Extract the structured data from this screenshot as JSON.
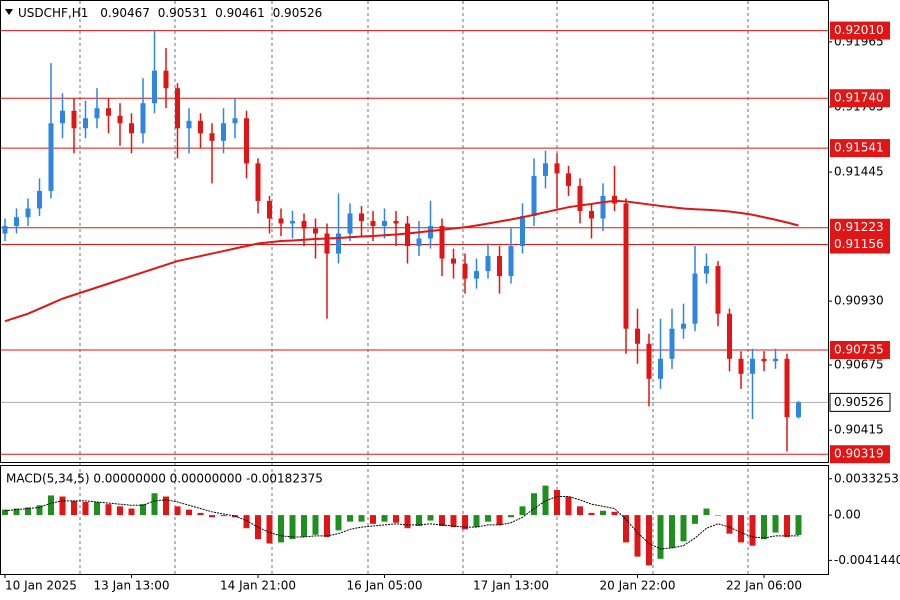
{
  "chart_data": {
    "type": "candlestick",
    "symbol": "USDCHF,H1",
    "bull_color": "#2f86e0",
    "bear_color": "#e01515",
    "ma_color": "#e01515",
    "level_color": "#e01515",
    "categories": [
      "10 Jan 2025",
      null,
      null,
      null,
      null,
      null,
      null,
      null,
      null,
      null,
      null,
      "13 Jan 13:00",
      null,
      null,
      null,
      null,
      null,
      null,
      null,
      null,
      null,
      null,
      "14 Jan 21:00",
      null,
      null,
      null,
      null,
      null,
      null,
      null,
      null,
      null,
      null,
      "16 Jan 05:00",
      null,
      null,
      null,
      null,
      null,
      null,
      null,
      null,
      null,
      null,
      "17 Jan 13:00",
      null,
      null,
      null,
      null,
      null,
      null,
      null,
      null,
      null,
      null,
      "20 Jan 22:00",
      null,
      null,
      null,
      null,
      null,
      null,
      null,
      null,
      null,
      null,
      "22 Jan 06:00",
      null,
      null,
      null
    ],
    "candles": [
      [
        0.912,
        0.9126,
        0.9117,
        0.9123
      ],
      [
        0.9123,
        0.913,
        0.912,
        0.91265
      ],
      [
        0.91265,
        0.9134,
        0.9123,
        0.913
      ],
      [
        0.913,
        0.9142,
        0.9127,
        0.9137
      ],
      [
        0.9137,
        0.9188,
        0.9134,
        0.9164
      ],
      [
        0.9164,
        0.9176,
        0.9158,
        0.9169
      ],
      [
        0.9169,
        0.9174,
        0.9152,
        0.9162
      ],
      [
        0.9162,
        0.9173,
        0.9158,
        0.9166
      ],
      [
        0.9166,
        0.9178,
        0.9162,
        0.917
      ],
      [
        0.917,
        0.9174,
        0.916,
        0.9167
      ],
      [
        0.9167,
        0.9172,
        0.9155,
        0.9164
      ],
      [
        0.9164,
        0.9168,
        0.9152,
        0.916
      ],
      [
        0.916,
        0.9182,
        0.9156,
        0.9172
      ],
      [
        0.9172,
        0.9201,
        0.9168,
        0.9185
      ],
      [
        0.9185,
        0.9194,
        0.917,
        0.9178
      ],
      [
        0.9178,
        0.918,
        0.915,
        0.9162
      ],
      [
        0.9162,
        0.917,
        0.9152,
        0.9165
      ],
      [
        0.9165,
        0.9168,
        0.9154,
        0.916
      ],
      [
        0.916,
        0.9164,
        0.914,
        0.9157
      ],
      [
        0.9157,
        0.917,
        0.9152,
        0.9164
      ],
      [
        0.9164,
        0.9174,
        0.9158,
        0.9166
      ],
      [
        0.9166,
        0.9169,
        0.9142,
        0.9148
      ],
      [
        0.9148,
        0.915,
        0.9128,
        0.9133
      ],
      [
        0.9133,
        0.9135,
        0.912,
        0.9126
      ],
      [
        0.9126,
        0.913,
        0.9119,
        0.9124
      ],
      [
        0.9124,
        0.9129,
        0.9118,
        0.9125
      ],
      [
        0.9125,
        0.9128,
        0.9115,
        0.9122
      ],
      [
        0.9122,
        0.9126,
        0.911,
        0.912
      ],
      [
        0.912,
        0.9124,
        0.9086,
        0.9112
      ],
      [
        0.9112,
        0.9136,
        0.9108,
        0.912
      ],
      [
        0.912,
        0.9132,
        0.9117,
        0.9128
      ],
      [
        0.9128,
        0.9131,
        0.9119,
        0.9125
      ],
      [
        0.9125,
        0.9129,
        0.9117,
        0.9123
      ],
      [
        0.9123,
        0.913,
        0.9118,
        0.9125
      ],
      [
        0.9125,
        0.9129,
        0.9115,
        0.9124
      ],
      [
        0.9124,
        0.9127,
        0.9108,
        0.9115
      ],
      [
        0.9115,
        0.9125,
        0.9111,
        0.9118
      ],
      [
        0.9118,
        0.9133,
        0.9114,
        0.9123
      ],
      [
        0.9123,
        0.9126,
        0.9103,
        0.911
      ],
      [
        0.911,
        0.9114,
        0.9102,
        0.9108
      ],
      [
        0.9108,
        0.9112,
        0.9096,
        0.9102
      ],
      [
        0.9102,
        0.911,
        0.9098,
        0.9105
      ],
      [
        0.9105,
        0.9116,
        0.9102,
        0.9111
      ],
      [
        0.9111,
        0.9115,
        0.9096,
        0.9103
      ],
      [
        0.9103,
        0.9122,
        0.91,
        0.9115
      ],
      [
        0.9115,
        0.9132,
        0.9112,
        0.9127
      ],
      [
        0.9127,
        0.915,
        0.9123,
        0.9143
      ],
      [
        0.9143,
        0.9153,
        0.9138,
        0.9148
      ],
      [
        0.9148,
        0.9152,
        0.913,
        0.9144
      ],
      [
        0.9144,
        0.9147,
        0.9135,
        0.9139
      ],
      [
        0.9139,
        0.9142,
        0.9124,
        0.9129
      ],
      [
        0.9129,
        0.9132,
        0.9118,
        0.9126
      ],
      [
        0.9126,
        0.914,
        0.9121,
        0.9135
      ],
      [
        0.9135,
        0.9147,
        0.9129,
        0.9132
      ],
      [
        0.9132,
        0.9134,
        0.9072,
        0.9082
      ],
      [
        0.9082,
        0.909,
        0.9068,
        0.9076
      ],
      [
        0.9076,
        0.908,
        0.9051,
        0.9062
      ],
      [
        0.9062,
        0.9086,
        0.9058,
        0.907
      ],
      [
        0.907,
        0.909,
        0.9066,
        0.9082
      ],
      [
        0.9082,
        0.9092,
        0.9078,
        0.9084
      ],
      [
        0.9084,
        0.9115,
        0.9081,
        0.9104
      ],
      [
        0.9104,
        0.9112,
        0.91,
        0.9107
      ],
      [
        0.9107,
        0.9109,
        0.9083,
        0.9088
      ],
      [
        0.9088,
        0.909,
        0.9065,
        0.907
      ],
      [
        0.907,
        0.9073,
        0.9058,
        0.9064
      ],
      [
        0.9064,
        0.9074,
        0.9046,
        0.907
      ],
      [
        0.907,
        0.9073,
        0.9065,
        0.9069
      ],
      [
        0.9069,
        0.9074,
        0.9066,
        0.907
      ],
      [
        0.907,
        0.9072,
        0.9033,
        0.90467
      ],
      [
        0.90467,
        0.90531,
        0.90461,
        0.90526
      ]
    ],
    "ma": [
      0.9085,
      0.90865,
      0.9088,
      0.909,
      0.9092,
      0.9094,
      0.90955,
      0.9097,
      0.90985,
      0.91,
      0.91015,
      0.9103,
      0.91045,
      0.9106,
      0.91075,
      0.9109,
      0.911,
      0.9111,
      0.9112,
      0.9113,
      0.9114,
      0.9115,
      0.9116,
      0.91165,
      0.9117,
      0.91172,
      0.91175,
      0.91178,
      0.9118,
      0.91182,
      0.91185,
      0.91188,
      0.9119,
      0.91193,
      0.91196,
      0.912,
      0.91205,
      0.9121,
      0.91215,
      0.9122,
      0.91225,
      0.91232,
      0.9124,
      0.91248,
      0.91256,
      0.91265,
      0.91275,
      0.91285,
      0.91295,
      0.91305,
      0.91312,
      0.91318,
      0.91325,
      0.9133,
      0.91328,
      0.91322,
      0.91316,
      0.9131,
      0.91305,
      0.913,
      0.91297,
      0.91295,
      0.91292,
      0.91288,
      0.91282,
      0.91275,
      0.91265,
      0.91255,
      0.91244,
      0.91232
    ],
    "ylim": [
      0.90288,
      0.92128
    ],
    "yticks": [
      0.91965,
      0.91705,
      0.91445,
      {
        "value": 0.9093,
        "label": "0.90930"
      },
      0.90675,
      0.90415
    ],
    "levels": [
      {
        "value": 0.9201,
        "label": "0.92010"
      },
      {
        "value": 0.9174,
        "label": "0.91740"
      },
      0.91541,
      0.91223,
      0.91156,
      0.90735,
      0.90319
    ],
    "macd": {
      "label": "MACD(5,34,5) 0.00000000 0.00000000 -0.00182375",
      "rise_color": "#1f8f1f",
      "fall_color": "#e01515",
      "histogram": [
        0.0005,
        0.0006,
        0.0007,
        0.0009,
        0.0018,
        0.0017,
        0.0013,
        0.0012,
        0.0012,
        0.001,
        0.0008,
        0.0006,
        0.001,
        0.002,
        0.0017,
        0.0008,
        0.0005,
        0.0002,
        -0.0002,
        -0.0001,
        -0.0002,
        -0.0012,
        -0.0022,
        -0.0026,
        -0.0025,
        -0.0022,
        -0.002,
        -0.0018,
        -0.002,
        -0.0014,
        -0.0006,
        -0.0006,
        -0.0008,
        -0.0006,
        -0.0007,
        -0.0012,
        -0.001,
        -0.0005,
        -0.001,
        -0.0011,
        -0.0013,
        -0.0011,
        -0.0006,
        -0.0009,
        -0.0002,
        0.0008,
        0.002,
        0.0027,
        0.0023,
        0.0017,
        0.0008,
        0.0002,
        0.0004,
        0.0003,
        -0.0025,
        -0.0038,
        -0.0046,
        -0.004,
        -0.003,
        -0.0024,
        -0.0008,
        0.0006,
        0,
        -0.0017,
        -0.0025,
        -0.0028,
        -0.0022,
        -0.0016,
        -0.002,
        -0.00182375
      ],
      "signal": [
        0.0004,
        0.0005,
        0.0006,
        0.0007,
        0.0011,
        0.0013,
        0.0013,
        0.0013,
        0.0012,
        0.0011,
        0.001,
        0.0009,
        0.0009,
        0.0013,
        0.0014,
        0.0012,
        0.0009,
        0.0006,
        0.0003,
        0.0001,
        -0.0001,
        -0.0005,
        -0.0011,
        -0.0016,
        -0.0019,
        -0.002,
        -0.002,
        -0.0019,
        -0.0019,
        -0.0017,
        -0.0013,
        -0.0011,
        -0.001,
        -0.0009,
        -0.0008,
        -0.0009,
        -0.0009,
        -0.0008,
        -0.0009,
        -0.001,
        -0.0011,
        -0.0011,
        -0.0009,
        -0.0009,
        -0.0007,
        -0.0002,
        0.0006,
        0.0013,
        0.0017,
        0.0017,
        0.0014,
        0.001,
        0.0008,
        0.0006,
        -0.0004,
        -0.0016,
        -0.0026,
        -0.0031,
        -0.003,
        -0.0028,
        -0.0021,
        -0.0012,
        -0.0008,
        -0.0011,
        -0.0016,
        -0.002,
        -0.0021,
        -0.0019,
        -0.0019,
        -0.0019
      ],
      "ylim": [
        -0.005392,
        0.004494
      ],
      "yticks": [
        0.0033253,
        {
          "value": 0,
          "label": "0.00"
        },
        {
          "value": -0.004144,
          "label": "-0.0041440"
        }
      ]
    }
  }
}
